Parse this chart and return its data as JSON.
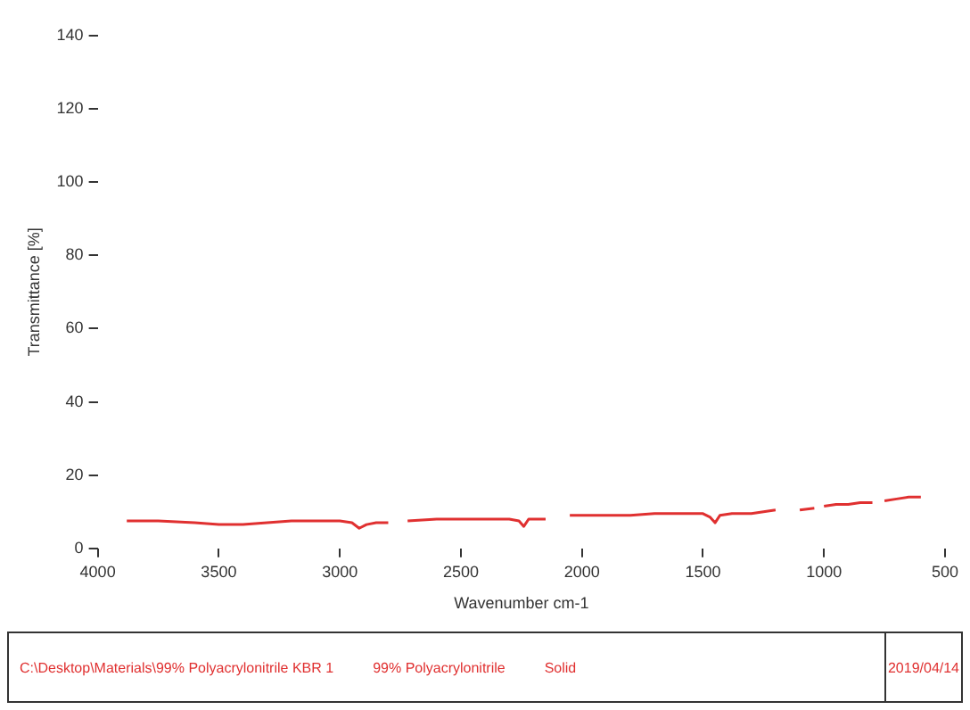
{
  "chart_data": {
    "type": "line",
    "xlabel": "Wavenumber cm-1",
    "ylabel": "Transmittance [%]",
    "x": [
      3880,
      3750,
      3600,
      3500,
      3400,
      3300,
      3200,
      3100,
      3000,
      2950,
      2920,
      2890,
      2850,
      2800,
      2760,
      2720,
      2600,
      2500,
      2400,
      2300,
      2260,
      2240,
      2220,
      2180,
      2150,
      2100,
      2050,
      1900,
      1800,
      1700,
      1600,
      1500,
      1470,
      1450,
      1430,
      1380,
      1300,
      1250,
      1200,
      1150,
      1100,
      1040,
      1020,
      1000,
      950,
      920,
      900,
      850,
      800,
      780,
      750,
      700,
      650,
      600
    ],
    "series": [
      {
        "color": "#e03030",
        "values": [
          7.5,
          7.5,
          7,
          6.5,
          6.5,
          7,
          7.5,
          7.5,
          7.5,
          7,
          5.5,
          6.5,
          7,
          7,
          null,
          7.5,
          8,
          8,
          8,
          8,
          7.5,
          6,
          8,
          8,
          8,
          null,
          9,
          9,
          9,
          9.5,
          9.5,
          9.5,
          8.5,
          7,
          9,
          9.5,
          9.5,
          10,
          10.5,
          null,
          10.5,
          11,
          null,
          11.5,
          12,
          12,
          12,
          12.5,
          12.5,
          null,
          13,
          13.5,
          14,
          14
        ]
      }
    ],
    "xlim": [
      4000,
      500
    ],
    "xticks": [
      4000,
      3500,
      3000,
      2500,
      2000,
      1500,
      1000,
      500
    ],
    "ylim": [
      0,
      140
    ],
    "yticks": [
      0,
      20,
      40,
      60,
      80,
      100,
      120,
      140
    ],
    "grid": false,
    "legend": false,
    "marker": "none",
    "line_style": "solid",
    "annotations": [
      "C:\\Desktop\\Materials\\99% Polyacrylonitrile KBR 1",
      "99% Polyacrylonitrile",
      "Solid",
      "2019/04/14"
    ]
  }
}
